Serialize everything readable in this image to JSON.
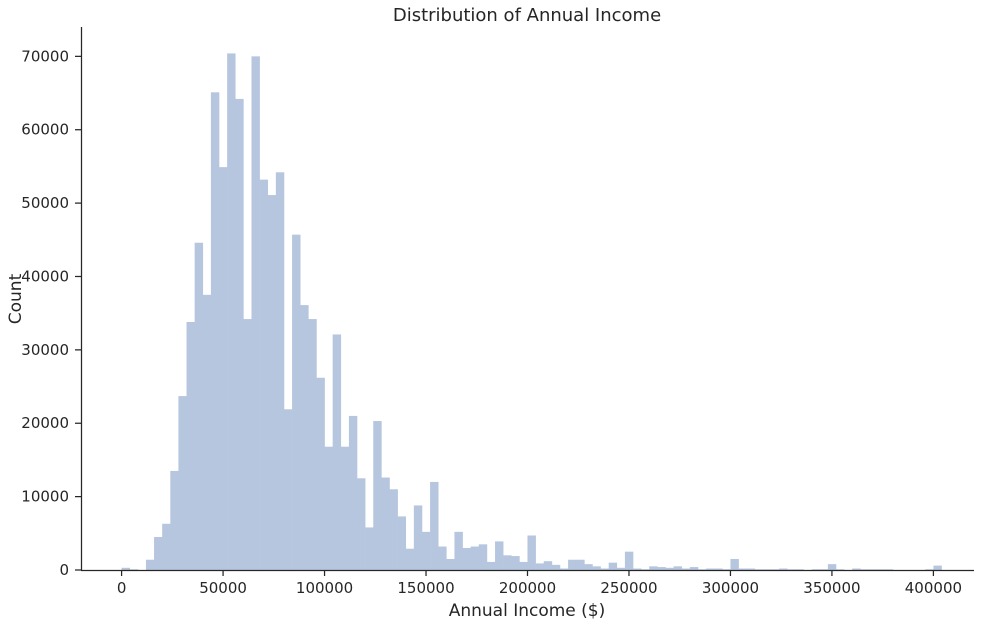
{
  "chart_data": {
    "type": "bar",
    "title": "Distribution of Annual Income",
    "xlabel": "Annual Income ($)",
    "ylabel": "Count",
    "xlim": [
      -20000,
      420000
    ],
    "ylim": [
      0,
      74000
    ],
    "xticks": [
      0,
      50000,
      100000,
      150000,
      200000,
      250000,
      300000,
      350000,
      400000
    ],
    "yticks": [
      0,
      10000,
      20000,
      30000,
      40000,
      50000,
      60000,
      70000
    ],
    "bin_start": 0,
    "bin_width": 4000,
    "bar_color": "#b6c6df",
    "grid": false,
    "values": [
      300,
      100,
      0,
      1400,
      4500,
      6300,
      13500,
      23700,
      33800,
      44600,
      37500,
      65100,
      54900,
      70400,
      64200,
      34200,
      70000,
      53200,
      51100,
      54200,
      21900,
      45700,
      36100,
      34200,
      26200,
      16800,
      32100,
      16800,
      21000,
      12500,
      5800,
      20300,
      12600,
      11000,
      7300,
      2900,
      8800,
      5200,
      12000,
      3200,
      1500,
      5200,
      3000,
      3200,
      3500,
      1100,
      3900,
      2000,
      1900,
      1100,
      4700,
      900,
      1200,
      700,
      200,
      1400,
      1400,
      800,
      500,
      200,
      1000,
      300,
      2500,
      200,
      100,
      500,
      400,
      300,
      500,
      200,
      400,
      100,
      200,
      200,
      100,
      1500,
      200,
      200,
      100,
      100,
      100,
      200,
      100,
      100,
      0,
      100,
      100,
      800,
      100,
      0,
      200,
      100,
      100,
      100,
      100,
      0,
      0,
      0,
      0,
      100,
      600
    ]
  }
}
